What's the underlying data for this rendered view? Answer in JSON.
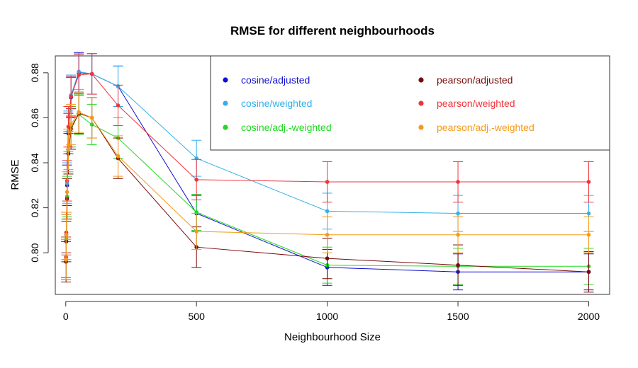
{
  "chart_data": {
    "type": "line",
    "title": "RMSE for different neighbourhoods",
    "xlabel": "Neighbourhood Size",
    "ylabel": "RMSE",
    "xlim": [
      -40,
      2080
    ],
    "ylim": [
      0.7815,
      0.8875
    ],
    "xticks": [
      0,
      500,
      1000,
      1500,
      2000
    ],
    "xtick_labels": [
      "0",
      "500",
      "1000",
      "1500",
      "2000"
    ],
    "yticks": [
      0.8,
      0.82,
      0.84,
      0.86,
      0.88
    ],
    "ytick_labels": [
      "0.80",
      "0.82",
      "0.84",
      "0.86",
      "0.88"
    ],
    "grid": false,
    "legend_position": "top-right",
    "x": [
      1,
      2,
      5,
      10,
      20,
      50,
      100,
      200,
      500,
      1000,
      1500,
      2000
    ],
    "series": [
      {
        "name": "cosine/adjusted",
        "color": "#1010d0",
        "values": [
          0.797,
          0.808,
          0.83,
          0.853,
          0.869,
          0.88,
          0.8795,
          0.874,
          0.8175,
          0.7935,
          0.7915,
          0.7915
        ],
        "errors": [
          0.009,
          0.009,
          0.009,
          0.009,
          0.009,
          0.009,
          0.009,
          0.009,
          0.008,
          0.008,
          0.008,
          0.008
        ]
      },
      {
        "name": "cosine/weighted",
        "color": "#35b0e8",
        "values": [
          0.798,
          0.809,
          0.831,
          0.854,
          0.87,
          0.8805,
          0.8795,
          0.874,
          0.842,
          0.8185,
          0.8175,
          0.8175
        ],
        "errors": [
          0.009,
          0.009,
          0.009,
          0.009,
          0.009,
          0.008,
          0.009,
          0.009,
          0.008,
          0.008,
          0.008,
          0.008
        ]
      },
      {
        "name": "cosine/adj.-weighted",
        "color": "#22d822",
        "values": [
          0.797,
          0.806,
          0.825,
          0.845,
          0.856,
          0.8615,
          0.857,
          0.851,
          0.818,
          0.7945,
          0.794,
          0.794
        ],
        "errors": [
          0.009,
          0.009,
          0.009,
          0.009,
          0.009,
          0.009,
          0.009,
          0.009,
          0.008,
          0.008,
          0.008,
          0.008
        ]
      },
      {
        "name": "pearson/adjusted",
        "color": "#7a0a0a",
        "values": [
          0.796,
          0.805,
          0.824,
          0.844,
          0.855,
          0.862,
          0.86,
          0.842,
          0.8025,
          0.7975,
          0.7945,
          0.7915
        ],
        "errors": [
          0.009,
          0.009,
          0.009,
          0.009,
          0.009,
          0.009,
          0.009,
          0.009,
          0.009,
          0.009,
          0.009,
          0.009
        ]
      },
      {
        "name": "pearson/weighted",
        "color": "#f0343c",
        "values": [
          0.798,
          0.809,
          0.832,
          0.856,
          0.8695,
          0.879,
          0.8795,
          0.8655,
          0.8325,
          0.8315,
          0.8315,
          0.8315
        ],
        "errors": [
          0.009,
          0.009,
          0.009,
          0.009,
          0.009,
          0.009,
          0.009,
          0.009,
          0.009,
          0.009,
          0.009,
          0.009
        ]
      },
      {
        "name": "pearson/adj.-weighted",
        "color": "#f59a18",
        "values": [
          0.797,
          0.808,
          0.827,
          0.846,
          0.857,
          0.8625,
          0.86,
          0.843,
          0.8095,
          0.808,
          0.808,
          0.808
        ],
        "errors": [
          0.009,
          0.009,
          0.009,
          0.009,
          0.009,
          0.009,
          0.009,
          0.009,
          0.008,
          0.008,
          0.008,
          0.008
        ]
      }
    ]
  }
}
